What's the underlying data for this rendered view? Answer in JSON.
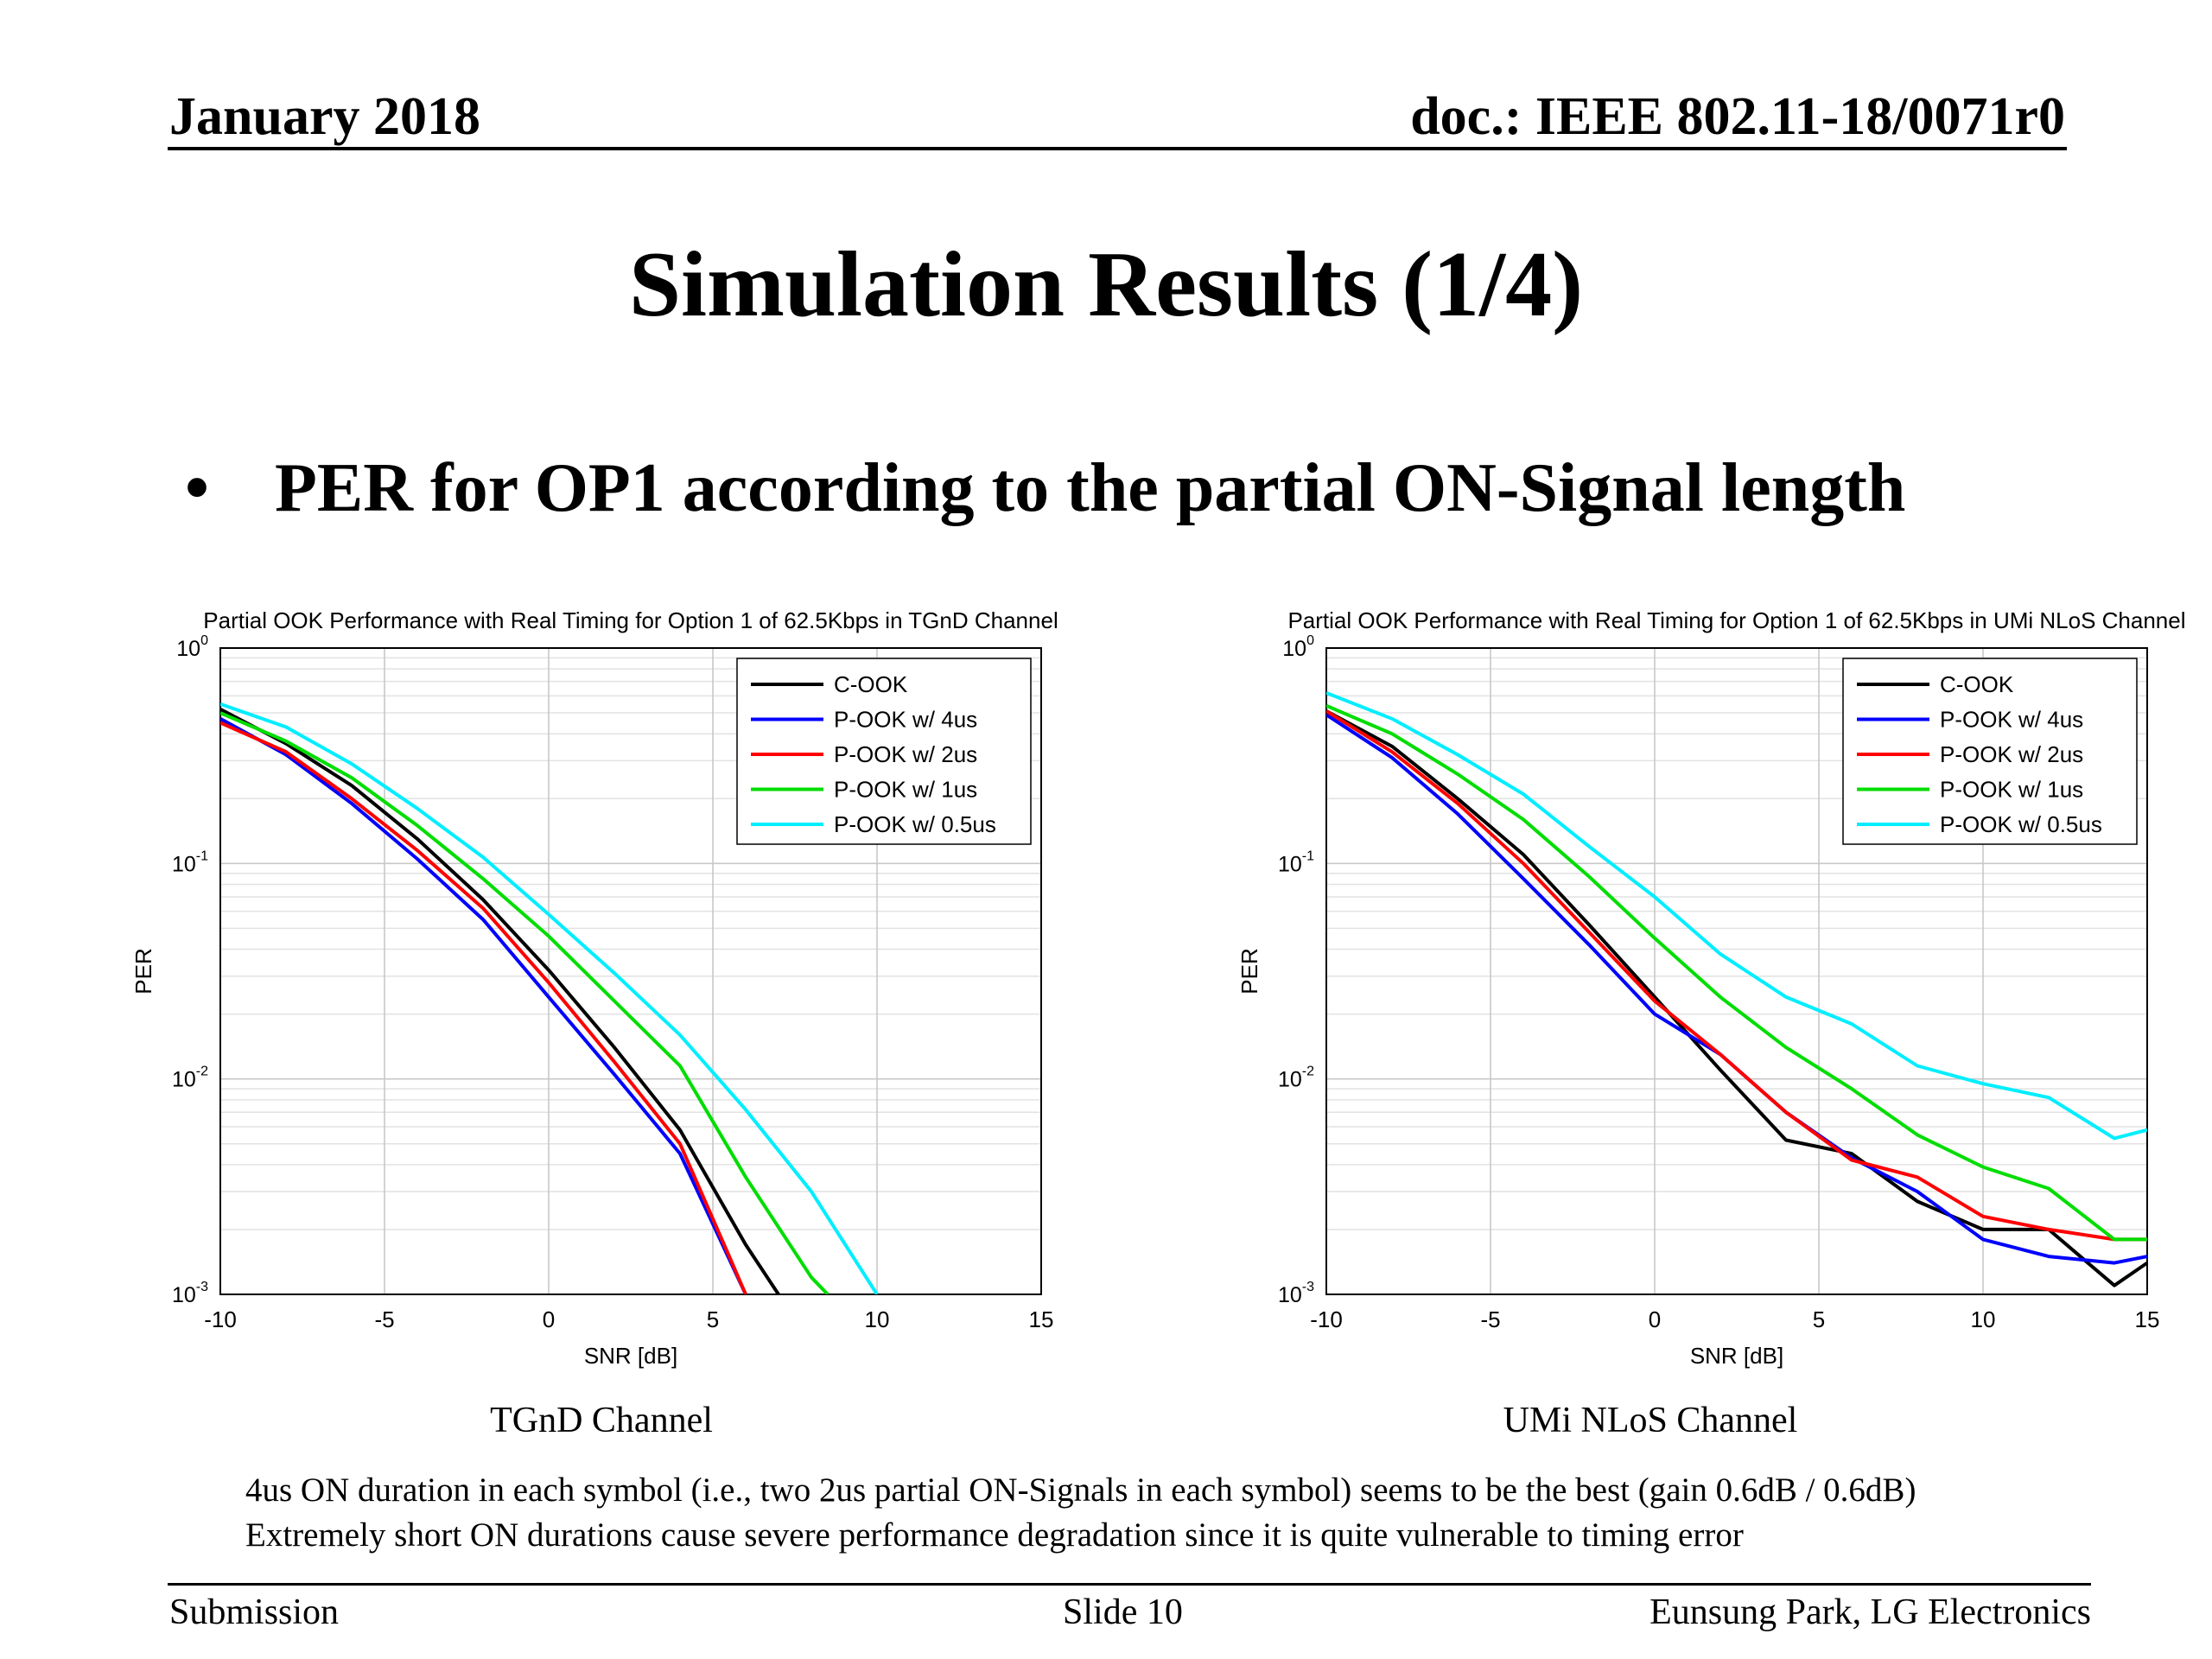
{
  "header": {
    "date": "January 2018",
    "doc": "doc.: IEEE 802.11-18/0071r0"
  },
  "title": "Simulation Results (1/4)",
  "bullet": "PER for OP1 according to the partial ON-Signal length",
  "captions": {
    "left": "TGnD Channel",
    "right": "UMi NLoS Channel"
  },
  "notes": [
    "4us ON duration in each symbol (i.e., two 2us partial ON-Signals in each symbol) seems to be the best (gain 0.6dB / 0.6dB)",
    "Extremely short ON durations cause severe performance degradation since it is quite vulnerable to timing error"
  ],
  "footer": {
    "left": "Submission",
    "center": "Slide 10",
    "right": "Eunsung Park, LG Electronics"
  },
  "colors": {
    "C-OOK": "#000000",
    "P-OOK w/ 4us": "#0000ff",
    "P-OOK w/ 2us": "#ff0000",
    "P-OOK w/ 1us": "#00dd00",
    "P-OOK w/ 0.5us": "#00eeff"
  },
  "chart_data": [
    {
      "type": "line",
      "title": "Partial OOK Performance with Real Timing for Option 1 of 62.5Kbps in TGnD Channel",
      "xlabel": "SNR [dB]",
      "ylabel": "PER",
      "xlim": [
        -10,
        15
      ],
      "ylim": [
        0.001,
        1
      ],
      "yscale": "log",
      "xticks": [
        "-10",
        "-5",
        "0",
        "5",
        "10",
        "15"
      ],
      "grid": true,
      "legend": "top-right",
      "series": [
        {
          "name": "C-OOK",
          "color": "#000000",
          "x": [
            -10,
            -8,
            -6,
            -4,
            -2,
            0,
            2,
            4,
            6,
            7
          ],
          "y": [
            0.52,
            0.36,
            0.23,
            0.13,
            0.068,
            0.032,
            0.014,
            0.0058,
            0.0017,
            0.001
          ]
        },
        {
          "name": "P-OOK w/ 4us",
          "color": "#0000ff",
          "x": [
            -10,
            -8,
            -6,
            -4,
            -2,
            0,
            2,
            4,
            6
          ],
          "y": [
            0.47,
            0.32,
            0.19,
            0.105,
            0.055,
            0.024,
            0.0105,
            0.0045,
            0.001
          ]
        },
        {
          "name": "P-OOK w/ 2us",
          "color": "#ff0000",
          "x": [
            -10,
            -8,
            -6,
            -4,
            -2,
            0,
            2,
            4,
            5.5,
            6
          ],
          "y": [
            0.45,
            0.33,
            0.2,
            0.115,
            0.062,
            0.028,
            0.012,
            0.005,
            0.0015,
            0.001
          ]
        },
        {
          "name": "P-OOK w/ 1us",
          "color": "#00dd00",
          "x": [
            -10,
            -8,
            -6,
            -4,
            -2,
            0,
            2,
            4,
            6,
            8,
            8.5
          ],
          "y": [
            0.5,
            0.37,
            0.25,
            0.15,
            0.085,
            0.046,
            0.023,
            0.0115,
            0.0035,
            0.0012,
            0.001
          ]
        },
        {
          "name": "P-OOK w/ 0.5us",
          "color": "#00eeff",
          "x": [
            -10,
            -8,
            -6,
            -4,
            -2,
            0,
            2,
            4,
            6,
            8,
            10
          ],
          "y": [
            0.55,
            0.43,
            0.29,
            0.18,
            0.107,
            0.058,
            0.031,
            0.016,
            0.0072,
            0.003,
            0.001
          ]
        }
      ]
    },
    {
      "type": "line",
      "title": "Partial OOK Performance with Real Timing for Option 1 of 62.5Kbps in UMi NLoS Channel",
      "xlabel": "SNR [dB]",
      "ylabel": "PER",
      "xlim": [
        -10,
        15
      ],
      "ylim": [
        0.001,
        1
      ],
      "yscale": "log",
      "xticks": [
        "-10",
        "-5",
        "0",
        "5",
        "10",
        "15"
      ],
      "grid": true,
      "legend": "top-right",
      "series": [
        {
          "name": "C-OOK",
          "color": "#000000",
          "x": [
            -10,
            -8,
            -6,
            -4,
            -2,
            0,
            2,
            4,
            6,
            8,
            10,
            12,
            14,
            15
          ],
          "y": [
            0.51,
            0.35,
            0.2,
            0.11,
            0.052,
            0.024,
            0.011,
            0.0052,
            0.0045,
            0.0027,
            0.002,
            0.002,
            0.0011,
            0.0014
          ]
        },
        {
          "name": "P-OOK w/ 4us",
          "color": "#0000ff",
          "x": [
            -10,
            -8,
            -6,
            -4,
            -2,
            0,
            2,
            4,
            6,
            8,
            10,
            12,
            14,
            15
          ],
          "y": [
            0.49,
            0.31,
            0.17,
            0.085,
            0.042,
            0.02,
            0.013,
            0.007,
            0.0043,
            0.003,
            0.0018,
            0.0015,
            0.0014,
            0.0015
          ]
        },
        {
          "name": "P-OOK w/ 2us",
          "color": "#ff0000",
          "x": [
            -10,
            -8,
            -6,
            -4,
            -2,
            0,
            2,
            4,
            6,
            8,
            10,
            12,
            14,
            15
          ],
          "y": [
            0.51,
            0.33,
            0.19,
            0.1,
            0.048,
            0.023,
            0.013,
            0.007,
            0.0042,
            0.0035,
            0.0023,
            0.002,
            0.0018,
            0.0018
          ]
        },
        {
          "name": "P-OOK w/ 1us",
          "color": "#00dd00",
          "x": [
            -10,
            -8,
            -6,
            -4,
            -2,
            0,
            2,
            4,
            6,
            8,
            10,
            12,
            14,
            15
          ],
          "y": [
            0.54,
            0.4,
            0.26,
            0.16,
            0.087,
            0.045,
            0.024,
            0.014,
            0.009,
            0.0055,
            0.0039,
            0.0031,
            0.0018,
            0.0018
          ]
        },
        {
          "name": "P-OOK w/ 0.5us",
          "color": "#00eeff",
          "x": [
            -10,
            -8,
            -6,
            -4,
            -2,
            0,
            2,
            4,
            6,
            8,
            10,
            12,
            14,
            15
          ],
          "y": [
            0.62,
            0.47,
            0.32,
            0.21,
            0.12,
            0.07,
            0.038,
            0.024,
            0.018,
            0.0115,
            0.0095,
            0.0082,
            0.0053,
            0.0058
          ]
        }
      ]
    }
  ]
}
